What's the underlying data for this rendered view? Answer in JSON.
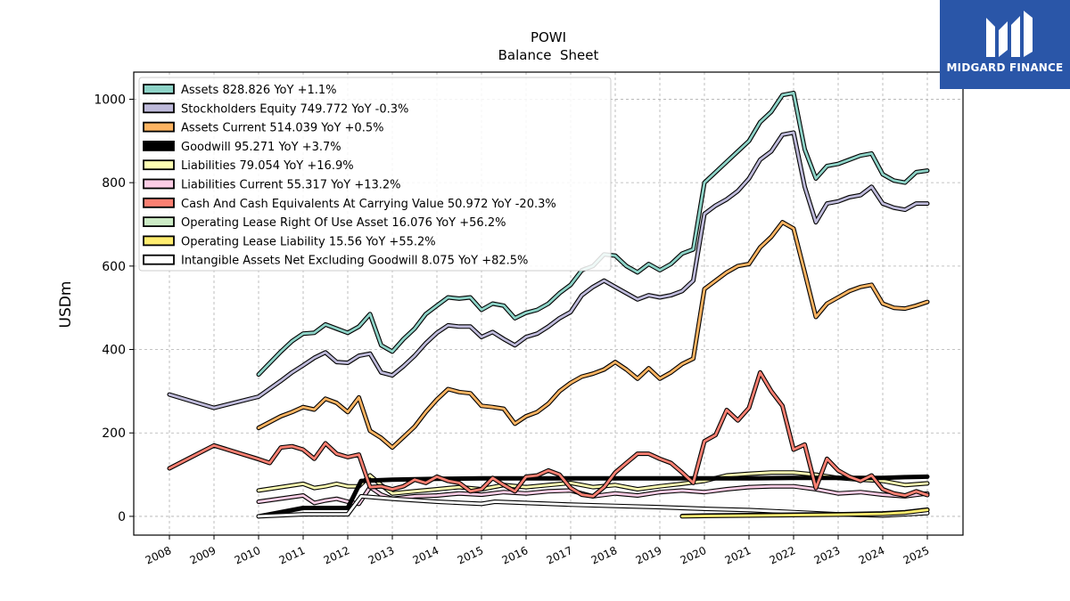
{
  "logo": {
    "text": "MIDGARD FINANCE",
    "icon": "midgard-logo-icon",
    "color": "#2a56a8"
  },
  "chart_data": {
    "type": "line",
    "title": "POWI",
    "subtitle": "Balance  Sheet",
    "xlabel": "",
    "ylabel": "USDm",
    "ylim": [
      -45,
      1065
    ],
    "xlim": [
      2007.2,
      2025.8
    ],
    "yticks": [
      0,
      200,
      400,
      600,
      800,
      1000
    ],
    "xticks": [
      2008,
      2009,
      2010,
      2011,
      2012,
      2013,
      2014,
      2015,
      2016,
      2017,
      2018,
      2019,
      2020,
      2021,
      2022,
      2023,
      2024,
      2025
    ],
    "grid": true,
    "legend_position": "top-left",
    "series": [
      {
        "name": "Assets",
        "label": "Assets  828.826 YoY +1.1%",
        "color": "#8dd3c7",
        "x": [
          2010.0,
          2010.5,
          2010.75,
          2011.0,
          2011.25,
          2011.5,
          2011.75,
          2012.0,
          2012.25,
          2012.5,
          2012.75,
          2013.0,
          2013.25,
          2013.5,
          2013.75,
          2014.0,
          2014.25,
          2014.5,
          2014.75,
          2015.0,
          2015.25,
          2015.5,
          2015.75,
          2016.0,
          2016.25,
          2016.5,
          2016.75,
          2017.0,
          2017.25,
          2017.5,
          2017.75,
          2018.0,
          2018.25,
          2018.5,
          2018.75,
          2019.0,
          2019.25,
          2019.5,
          2019.75,
          2020.0,
          2020.25,
          2020.5,
          2020.75,
          2021.0,
          2021.25,
          2021.5,
          2021.75,
          2022.0,
          2022.25,
          2022.5,
          2022.75,
          2023.0,
          2023.25,
          2023.5,
          2023.75,
          2024.0,
          2024.25,
          2024.5,
          2024.75,
          2025.0
        ],
        "y": [
          340,
          395,
          420,
          438,
          440,
          460,
          450,
          440,
          455,
          485,
          410,
          395,
          425,
          450,
          485,
          505,
          525,
          522,
          525,
          495,
          510,
          505,
          475,
          488,
          495,
          510,
          535,
          555,
          590,
          600,
          628,
          625,
          600,
          585,
          605,
          590,
          605,
          630,
          640,
          800,
          825,
          850,
          875,
          900,
          945,
          970,
          1010,
          1015,
          880,
          810,
          840,
          845,
          855,
          865,
          870,
          820,
          805,
          800,
          825,
          829
        ]
      },
      {
        "name": "Stockholders Equity",
        "label": "Stockholders Equity  749.772 YoY -0.3%",
        "color": "#bebada",
        "x": [
          2008.0,
          2009.0,
          2010.0,
          2010.5,
          2010.75,
          2011.0,
          2011.25,
          2011.5,
          2011.75,
          2012.0,
          2012.25,
          2012.5,
          2012.75,
          2013.0,
          2013.25,
          2013.5,
          2013.75,
          2014.0,
          2014.25,
          2014.5,
          2014.75,
          2015.0,
          2015.25,
          2015.5,
          2015.75,
          2016.0,
          2016.25,
          2016.5,
          2016.75,
          2017.0,
          2017.25,
          2017.5,
          2017.75,
          2018.0,
          2018.25,
          2018.5,
          2018.75,
          2019.0,
          2019.25,
          2019.5,
          2019.75,
          2020.0,
          2020.25,
          2020.5,
          2020.75,
          2021.0,
          2021.25,
          2021.5,
          2021.75,
          2022.0,
          2022.25,
          2022.5,
          2022.75,
          2023.0,
          2023.25,
          2023.5,
          2023.75,
          2024.0,
          2024.25,
          2024.5,
          2024.75,
          2025.0
        ],
        "y": [
          292,
          260,
          287,
          325,
          345,
          362,
          380,
          393,
          370,
          368,
          385,
          390,
          345,
          338,
          360,
          385,
          415,
          440,
          458,
          455,
          455,
          430,
          442,
          425,
          410,
          430,
          438,
          455,
          475,
          490,
          530,
          550,
          565,
          550,
          535,
          520,
          530,
          525,
          530,
          540,
          565,
          725,
          745,
          760,
          780,
          810,
          855,
          875,
          915,
          920,
          790,
          705,
          750,
          755,
          765,
          770,
          790,
          750,
          740,
          735,
          750,
          750
        ]
      },
      {
        "name": "Assets Current",
        "label": "Assets Current  514.039 YoY +0.5%",
        "color": "#fdb462",
        "x": [
          2010.0,
          2010.5,
          2010.75,
          2011.0,
          2011.25,
          2011.5,
          2011.75,
          2012.0,
          2012.25,
          2012.5,
          2012.75,
          2013.0,
          2013.25,
          2013.5,
          2013.75,
          2014.0,
          2014.25,
          2014.5,
          2014.75,
          2015.0,
          2015.25,
          2015.5,
          2015.75,
          2016.0,
          2016.25,
          2016.5,
          2016.75,
          2017.0,
          2017.25,
          2017.5,
          2017.75,
          2018.0,
          2018.25,
          2018.5,
          2018.75,
          2019.0,
          2019.25,
          2019.5,
          2019.75,
          2020.0,
          2020.25,
          2020.5,
          2020.75,
          2021.0,
          2021.25,
          2021.5,
          2021.75,
          2022.0,
          2022.25,
          2022.5,
          2022.75,
          2023.0,
          2023.25,
          2023.5,
          2023.75,
          2024.0,
          2024.25,
          2024.5,
          2024.75,
          2025.0
        ],
        "y": [
          212,
          240,
          250,
          262,
          256,
          282,
          272,
          250,
          285,
          205,
          188,
          165,
          190,
          215,
          250,
          280,
          305,
          298,
          295,
          265,
          262,
          258,
          222,
          240,
          250,
          270,
          300,
          320,
          335,
          342,
          352,
          370,
          352,
          330,
          355,
          330,
          345,
          365,
          378,
          545,
          565,
          585,
          600,
          605,
          645,
          670,
          705,
          690,
          585,
          478,
          510,
          525,
          540,
          550,
          555,
          510,
          500,
          498,
          505,
          514
        ]
      },
      {
        "name": "Goodwill",
        "label": "Goodwill  95.271 YoY +3.7%",
        "color": "#000000",
        "x": [
          2010.0,
          2011.0,
          2012.0,
          2012.3,
          2013.0,
          2014.0,
          2015.0,
          2016.0,
          2017.0,
          2018.0,
          2019.0,
          2020.0,
          2021.0,
          2022.0,
          2023.0,
          2024.0,
          2024.5,
          2025.0
        ],
        "y": [
          0,
          20,
          20,
          85,
          88,
          90,
          91,
          91,
          91,
          91,
          91,
          91,
          91,
          92,
          92,
          92,
          94,
          95
        ]
      },
      {
        "name": "Liabilities",
        "label": "Liabilities  79.054 YoY +16.9%",
        "color": "#ffffb3",
        "x": [
          2010.0,
          2011.0,
          2011.25,
          2011.5,
          2011.75,
          2012.0,
          2012.25,
          2012.5,
          2012.75,
          2013.0,
          2013.5,
          2014.0,
          2014.5,
          2015.0,
          2015.5,
          2016.0,
          2016.5,
          2017.0,
          2017.5,
          2018.0,
          2018.5,
          2019.0,
          2019.5,
          2020.0,
          2020.5,
          2021.0,
          2021.5,
          2022.0,
          2022.5,
          2023.0,
          2023.5,
          2024.0,
          2024.5,
          2025.0
        ],
        "y": [
          62,
          78,
          68,
          72,
          78,
          72,
          72,
          98,
          75,
          55,
          60,
          65,
          70,
          65,
          75,
          70,
          75,
          80,
          70,
          75,
          65,
          72,
          78,
          85,
          98,
          102,
          105,
          105,
          100,
          92,
          88,
          85,
          75,
          79
        ]
      },
      {
        "name": "Liabilities Current",
        "label": "Liabilities Current  55.317 YoY +13.2%",
        "color": "#fccde5",
        "x": [
          2010.0,
          2011.0,
          2011.25,
          2011.5,
          2011.75,
          2012.0,
          2012.25,
          2012.5,
          2012.75,
          2013.0,
          2013.5,
          2014.0,
          2014.5,
          2015.0,
          2015.5,
          2016.0,
          2016.5,
          2017.0,
          2017.5,
          2018.0,
          2018.5,
          2019.0,
          2019.5,
          2020.0,
          2020.5,
          2021.0,
          2021.5,
          2022.0,
          2022.5,
          2023.0,
          2023.5,
          2024.0,
          2024.5,
          2025.0
        ],
        "y": [
          35,
          50,
          32,
          38,
          42,
          35,
          30,
          70,
          52,
          42,
          48,
          50,
          55,
          52,
          58,
          55,
          60,
          62,
          48,
          55,
          50,
          58,
          62,
          58,
          65,
          70,
          72,
          72,
          65,
          55,
          58,
          52,
          48,
          55
        ]
      },
      {
        "name": "Cash And Cash Equivalents At Carrying Value",
        "label": "Cash And Cash Equivalents At Carrying Value  50.972 YoY -20.3%",
        "color": "#fb8072",
        "x": [
          2008.0,
          2009.0,
          2010.0,
          2010.25,
          2010.5,
          2010.75,
          2011.0,
          2011.25,
          2011.5,
          2011.75,
          2012.0,
          2012.25,
          2012.5,
          2012.75,
          2013.0,
          2013.25,
          2013.5,
          2013.75,
          2014.0,
          2014.25,
          2014.5,
          2014.75,
          2015.0,
          2015.25,
          2015.5,
          2015.75,
          2016.0,
          2016.25,
          2016.5,
          2016.75,
          2017.0,
          2017.25,
          2017.5,
          2017.75,
          2018.0,
          2018.25,
          2018.5,
          2018.75,
          2019.0,
          2019.25,
          2019.5,
          2019.75,
          2020.0,
          2020.25,
          2020.5,
          2020.75,
          2021.0,
          2021.25,
          2021.5,
          2021.75,
          2022.0,
          2022.25,
          2022.5,
          2022.75,
          2023.0,
          2023.25,
          2023.5,
          2023.75,
          2024.0,
          2024.25,
          2024.5,
          2024.75,
          2025.0
        ],
        "y": [
          115,
          170,
          137,
          128,
          165,
          168,
          160,
          138,
          175,
          150,
          142,
          148,
          70,
          72,
          65,
          72,
          88,
          80,
          95,
          85,
          80,
          60,
          65,
          92,
          75,
          60,
          95,
          98,
          110,
          100,
          68,
          52,
          48,
          70,
          105,
          128,
          150,
          150,
          138,
          128,
          105,
          80,
          180,
          195,
          255,
          230,
          260,
          345,
          300,
          265,
          160,
          172,
          68,
          138,
          110,
          95,
          85,
          98,
          65,
          55,
          50,
          60,
          51
        ]
      },
      {
        "name": "Operating Lease Right Of Use Asset",
        "label": "Operating Lease Right Of Use Asset  16.076 YoY +56.2%",
        "color": "#ccebc5",
        "x": [
          2019.5,
          2020.0,
          2021.0,
          2022.0,
          2023.0,
          2024.0,
          2024.5,
          2025.0
        ],
        "y": [
          1,
          2,
          3,
          4,
          5,
          7,
          10,
          16
        ]
      },
      {
        "name": "Operating Lease Liability",
        "label": "Operating Lease Liability  15.56 YoY +55.2%",
        "color": "#ffed6f",
        "x": [
          2019.5,
          2020.0,
          2021.0,
          2022.0,
          2023.0,
          2024.0,
          2024.5,
          2025.0
        ],
        "y": [
          0,
          1,
          2,
          3,
          4,
          6,
          9,
          15.5
        ]
      },
      {
        "name": "Intangible Assets Net Excluding Goodwill",
        "label": "Intangible Assets Net Excluding Goodwill  8.075 YoY +82.5%",
        "color": "#ffffff",
        "x": [
          2010.0,
          2011.0,
          2012.0,
          2012.3,
          2013.0,
          2014.0,
          2015.0,
          2015.3,
          2016.0,
          2017.0,
          2018.0,
          2019.0,
          2020.0,
          2021.0,
          2022.0,
          2023.0,
          2024.0,
          2024.5,
          2025.0
        ],
        "y": [
          0,
          5,
          5,
          48,
          42,
          35,
          30,
          35,
          32,
          28,
          25,
          22,
          18,
          15,
          10,
          5,
          2,
          5,
          8
        ]
      }
    ]
  }
}
